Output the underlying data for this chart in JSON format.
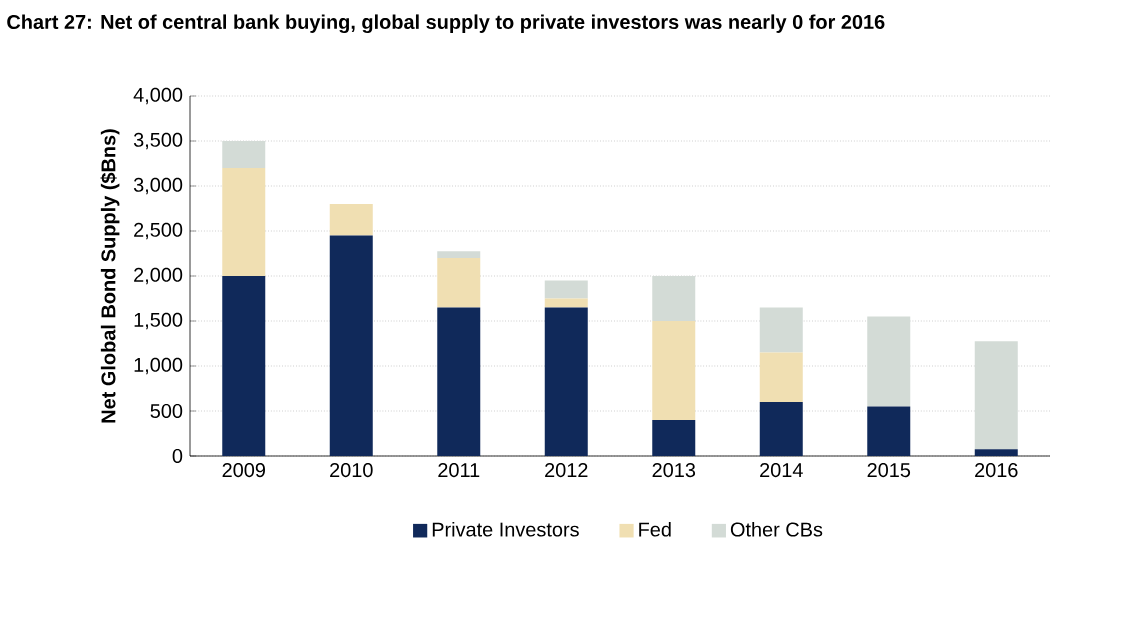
{
  "chart_data": {
    "type": "bar",
    "stacked": true,
    "title": "Chart 27: Net of central bank buying, global supply to private investors was nearly 0 for 2016",
    "ylabel": "Net Global Bond Supply ($Bns)",
    "categories": [
      "2009",
      "2010",
      "2011",
      "2012",
      "2013",
      "2014",
      "2015",
      "2016"
    ],
    "series": [
      {
        "name": "Private Investors",
        "color": "#10295a",
        "values": [
          2000,
          2450,
          1650,
          1650,
          400,
          600,
          550,
          75
        ]
      },
      {
        "name": "Fed",
        "color": "#f0dfb2",
        "values": [
          1200,
          350,
          550,
          100,
          1100,
          550,
          0,
          0
        ]
      },
      {
        "name": "Other CBs",
        "color": "#d3dbd6",
        "values": [
          300,
          0,
          75,
          200,
          500,
          500,
          1000,
          1200
        ]
      }
    ],
    "ylim": [
      0,
      4000
    ],
    "yticks": [
      {
        "value": 0,
        "label": "0"
      },
      {
        "value": 500,
        "label": "500"
      },
      {
        "value": 1000,
        "label": "1,000"
      },
      {
        "value": 1500,
        "label": "1,500"
      },
      {
        "value": 2000,
        "label": "2,000"
      },
      {
        "value": 2500,
        "label": "2,500"
      },
      {
        "value": 3000,
        "label": "3,000"
      },
      {
        "value": 3500,
        "label": "3,500"
      },
      {
        "value": 4000,
        "label": "4,000"
      }
    ],
    "grid": "y",
    "legend": "bottom"
  }
}
